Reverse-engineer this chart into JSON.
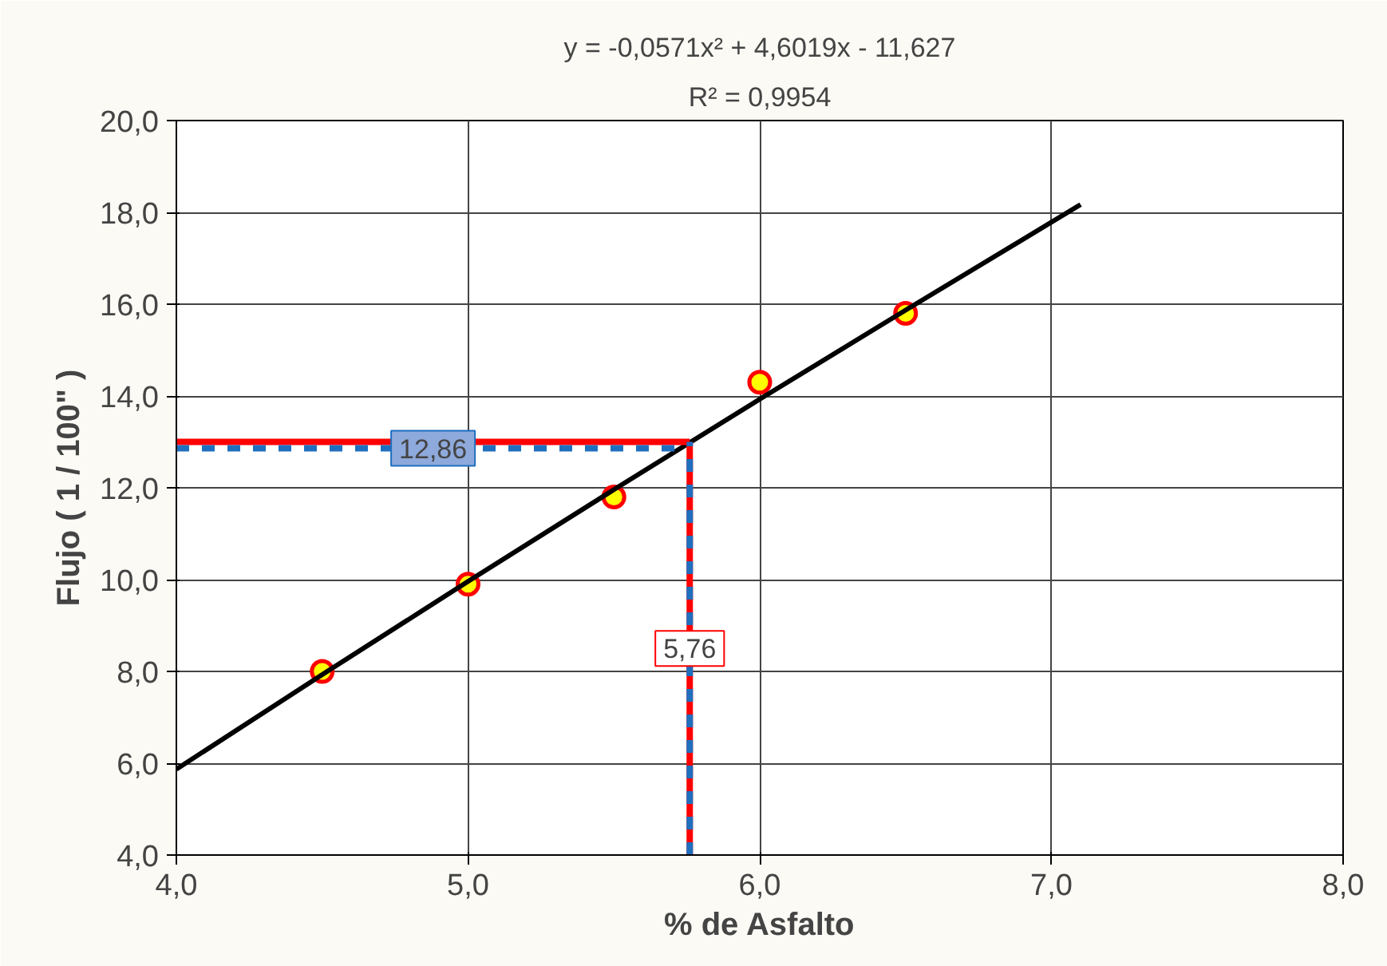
{
  "chart_data": {
    "type": "scatter",
    "xlabel": "% de Asfalto",
    "ylabel": "Flujo ( 1 / 100\" )",
    "annotations": [
      "y = -0,0571x² + 4,6019x - 11,627",
      "R² = 0,9954"
    ],
    "series": [
      {
        "color": "#ffff00",
        "x": [
          4.5,
          5.0,
          5.5,
          6.0,
          6.5
        ],
        "values": [
          8.0,
          9.9,
          11.8,
          14.3,
          15.8
        ]
      },
      {
        "type": "line",
        "color": "#000000",
        "marker": "none",
        "x": [
          4.0,
          4.5,
          5.0,
          5.5,
          6.0,
          6.5,
          7.1
        ],
        "values": [
          5.87,
          7.93,
          9.96,
          11.96,
          13.93,
          15.87,
          18.17
        ]
      }
    ],
    "marker": "circle",
    "xlim": [
      4.0,
      8.0
    ],
    "xticks": [
      {
        "value": 4,
        "label": "4,0"
      },
      {
        "value": 5,
        "label": "5,0"
      },
      {
        "value": 6,
        "label": "6,0"
      },
      {
        "value": 7,
        "label": "7,0"
      },
      {
        "value": 8,
        "label": "8,0"
      }
    ],
    "ylim": [
      4.0,
      20.0
    ],
    "yticks": [
      {
        "value": 4,
        "label": "4,0"
      },
      {
        "value": 6,
        "label": "6,0"
      },
      {
        "value": 8,
        "label": "8,0"
      },
      {
        "value": 10,
        "label": "10,0"
      },
      {
        "value": 12,
        "label": "12,0"
      },
      {
        "value": 14,
        "label": "14,0"
      },
      {
        "value": 16,
        "label": "16,0"
      },
      {
        "value": 18,
        "label": "18,0"
      },
      {
        "value": 20,
        "label": "20,0"
      }
    ],
    "grid": true,
    "ref_lines": [
      {
        "axis": "y",
        "value": 13.0,
        "color": "#ff0000"
      },
      {
        "axis": "y",
        "value": 12.86,
        "label": "12,86",
        "color": "#1f6fbf",
        "line_style": "dashed"
      },
      {
        "axis": "x",
        "value": 5.76,
        "label": "5,76",
        "color": "#ff0000"
      },
      {
        "axis": "x",
        "value": 5.76,
        "color": "#1f6fbf",
        "line_style": "dashed"
      }
    ]
  }
}
